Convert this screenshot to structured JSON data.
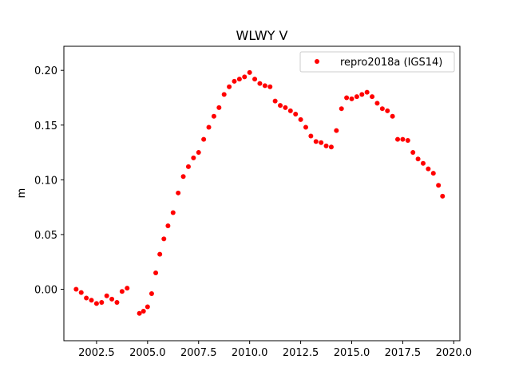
{
  "chart_data": {
    "type": "scatter",
    "title": "WLWY V",
    "xlabel": "",
    "ylabel": "m",
    "xlim": [
      2000.9,
      2020.3
    ],
    "ylim": [
      -0.047,
      0.222
    ],
    "xticks": [
      2002.5,
      2005.0,
      2007.5,
      2010.0,
      2012.5,
      2015.0,
      2017.5,
      2020.0
    ],
    "xtick_labels": [
      "2002.5",
      "2005.0",
      "2007.5",
      "2010.0",
      "2012.5",
      "2015.0",
      "2017.5",
      "2020.0"
    ],
    "yticks": [
      0.0,
      0.05,
      0.1,
      0.15,
      0.2
    ],
    "ytick_labels": [
      "0.00",
      "0.05",
      "0.10",
      "0.15",
      "0.20"
    ],
    "grid": false,
    "legend_position": "top-right",
    "marker_color": "#ff0000",
    "series": [
      {
        "name": "repro2018a (IGS14)",
        "color": "#ff0000",
        "x": [
          2001.5,
          2001.75,
          2002.0,
          2002.25,
          2002.5,
          2002.75,
          2003.0,
          2003.25,
          2003.5,
          2003.75,
          2004.0,
          2004.6,
          2004.8,
          2005.0,
          2005.2,
          2005.4,
          2005.6,
          2005.8,
          2006.0,
          2006.25,
          2006.5,
          2006.75,
          2007.0,
          2007.25,
          2007.5,
          2007.75,
          2008.0,
          2008.25,
          2008.5,
          2008.75,
          2009.0,
          2009.25,
          2009.5,
          2009.75,
          2010.0,
          2010.25,
          2010.5,
          2010.75,
          2011.0,
          2011.25,
          2011.5,
          2011.75,
          2012.0,
          2012.25,
          2012.5,
          2012.75,
          2013.0,
          2013.25,
          2013.5,
          2013.75,
          2014.0,
          2014.25,
          2014.5,
          2014.75,
          2015.0,
          2015.25,
          2015.5,
          2015.75,
          2016.0,
          2016.25,
          2016.5,
          2016.75,
          2017.0,
          2017.25,
          2017.5,
          2017.75,
          2018.0,
          2018.25,
          2018.5,
          2018.75,
          2019.0,
          2019.25,
          2019.45
        ],
        "y": [
          0.0,
          -0.003,
          -0.008,
          -0.01,
          -0.013,
          -0.012,
          -0.006,
          -0.009,
          -0.012,
          -0.002,
          0.001,
          -0.022,
          -0.02,
          -0.016,
          -0.004,
          0.015,
          0.032,
          0.046,
          0.058,
          0.07,
          0.088,
          0.103,
          0.112,
          0.12,
          0.125,
          0.137,
          0.148,
          0.158,
          0.166,
          0.178,
          0.185,
          0.19,
          0.192,
          0.194,
          0.198,
          0.192,
          0.188,
          0.186,
          0.185,
          0.172,
          0.168,
          0.166,
          0.163,
          0.16,
          0.155,
          0.148,
          0.14,
          0.135,
          0.134,
          0.131,
          0.13,
          0.145,
          0.165,
          0.175,
          0.174,
          0.176,
          0.178,
          0.18,
          0.176,
          0.17,
          0.165,
          0.163,
          0.158,
          0.137,
          0.137,
          0.136,
          0.125,
          0.119,
          0.115,
          0.11,
          0.106,
          0.095,
          0.085
        ]
      }
    ]
  }
}
